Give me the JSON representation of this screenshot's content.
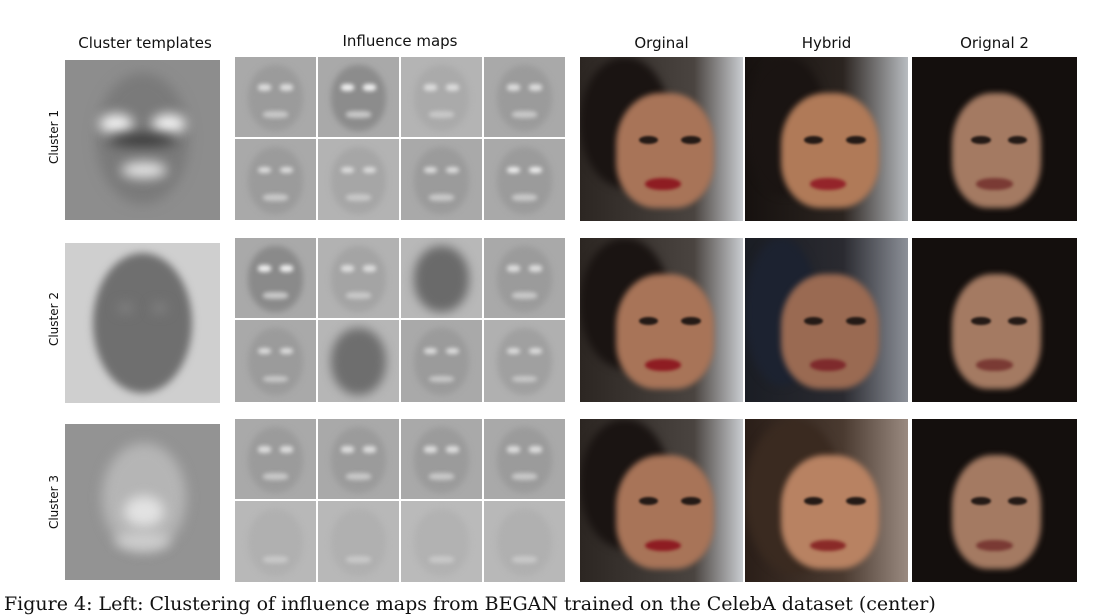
{
  "headers": {
    "templates": "Cluster templates",
    "influence": "Influence maps",
    "original": "Orginal",
    "hybrid": "Hybrid",
    "original2": "Orignal 2"
  },
  "rows": [
    {
      "label": "Cluster 1"
    },
    {
      "label": "Cluster 2"
    },
    {
      "label": "Cluster 3"
    }
  ],
  "caption": "Figure 4: Left: Clustering of influence maps from BEGAN trained on the CelebA dataset (center)"
}
